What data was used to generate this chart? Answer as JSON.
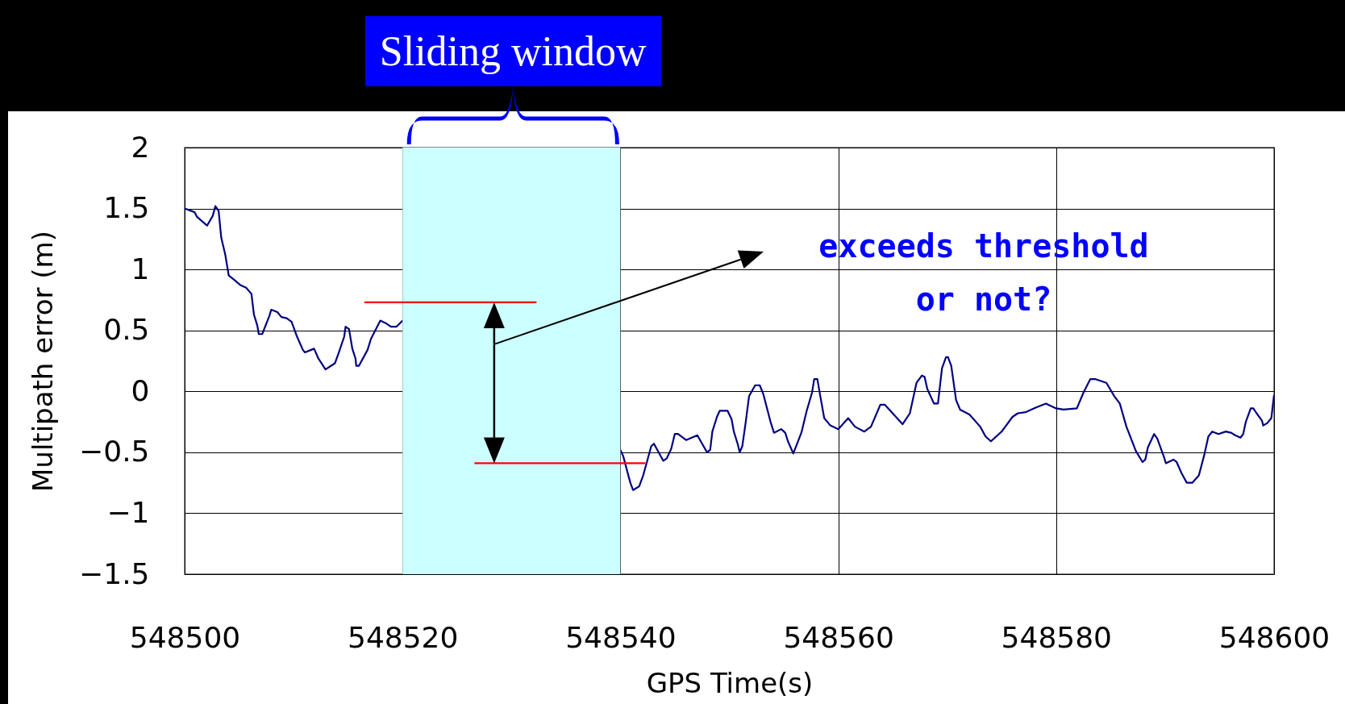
{
  "chart_data": {
    "type": "line",
    "xlabel": "GPS Time(s)",
    "ylabel": "Multipath error (m)",
    "xlim": [
      548500,
      548600
    ],
    "xticks": [
      548500,
      548520,
      548540,
      548560,
      548580,
      548600
    ],
    "ylim": [
      -1.5,
      2
    ],
    "yticks": [
      {
        "value": -1.5,
        "label": "−1.5"
      },
      {
        "value": -1,
        "label": "−1"
      },
      {
        "value": -0.5,
        "label": "−0.5"
      },
      0,
      0.5,
      1,
      1.5,
      2
    ],
    "grid": true,
    "line_style": "solid",
    "marker": "none",
    "series": [
      {
        "type": "line",
        "color": "#000080",
        "x": [
          548500,
          548500.91,
          548501.15,
          548502.06,
          548502.58,
          548502.82,
          548503.12,
          548503.36,
          548503.73,
          548504.05,
          548504.47,
          548505.15,
          548505.64,
          548506.13,
          548506.36,
          548506.67,
          548506.8,
          548507.12,
          548507.78,
          548507.95,
          548508.51,
          548508.88,
          548509.37,
          548509.82,
          548510.31,
          548510.85,
          548511.04,
          548511.88,
          548512.27,
          548512.93,
          548513.79,
          548514.16,
          548514.65,
          548514.77,
          548515.09,
          548515.39,
          548515.68,
          548515.75,
          548516,
          548516.79,
          548517.1,
          548517.96,
          548518.45,
          548518.94,
          548519.43,
          548520,
          548530,
          548540,
          548540.25,
          548540.91,
          548541.16,
          548541.72,
          548542.09,
          548542.46,
          548542.83,
          548543.08,
          548543.32,
          548543.94,
          548544.26,
          548544.67,
          548544.99,
          548545.29,
          548546.03,
          548547.06,
          548547.63,
          548547.95,
          548548.24,
          548548.44,
          548548.86,
          548549.11,
          548549.84,
          548550.21,
          548550.41,
          548550.76,
          548550.95,
          548551.19,
          548551.49,
          548551.81,
          548552.37,
          548552.79,
          548553.11,
          548553.78,
          548554.1,
          548554.76,
          548555.13,
          548555.38,
          548555.87,
          548556.61,
          548557.1,
          548557.59,
          548557.79,
          548558.08,
          548558.33,
          548558.71,
          548559.27,
          548560,
          548560.91,
          548561.53,
          548562.39,
          548563,
          548563.86,
          548564.28,
          548565.09,
          548565.9,
          548566.57,
          548567.18,
          548567.68,
          548567.92,
          548568.17,
          548568.78,
          548569.15,
          548569.52,
          548569.89,
          548570.07,
          548570.37,
          548570.81,
          548571.18,
          548572.04,
          548573.03,
          548573.52,
          548574.01,
          548575,
          548575.99,
          548576.48,
          548577.22,
          548578.2,
          548579.06,
          548580,
          548580.67,
          548581.9,
          548582.51,
          548583.13,
          548583.62,
          548584.61,
          548585.34,
          548585.84,
          548586.45,
          548587.32,
          548587.93,
          548588.18,
          548588.42,
          548588.99,
          548589.29,
          548589.9,
          548590.07,
          548590.76,
          548591.06,
          548591.5,
          548591.99,
          548592.49,
          548593.1,
          548593.6,
          548593.97,
          548594.33,
          548594.9,
          548595.57,
          548596.06,
          548596.43,
          548596.92,
          548597.17,
          548597.41,
          548597.86,
          548598.1,
          548598.4,
          548598.89,
          548599.01,
          548599.38,
          548599.75,
          548600
        ],
        "values": [
          1.5,
          1.47,
          1.43,
          1.36,
          1.44,
          1.52,
          1.48,
          1.26,
          1.12,
          0.95,
          0.92,
          0.87,
          0.85,
          0.8,
          0.63,
          0.54,
          0.47,
          0.47,
          0.62,
          0.67,
          0.65,
          0.61,
          0.6,
          0.57,
          0.45,
          0.34,
          0.32,
          0.35,
          0.27,
          0.18,
          0.23,
          0.32,
          0.45,
          0.53,
          0.51,
          0.35,
          0.27,
          0.21,
          0.21,
          0.34,
          0.43,
          0.58,
          0.56,
          0.53,
          0.53,
          0.58,
          null,
          -0.48,
          -0.53,
          -0.75,
          -0.81,
          -0.78,
          -0.69,
          -0.57,
          -0.45,
          -0.43,
          -0.47,
          -0.57,
          -0.55,
          -0.47,
          -0.35,
          -0.35,
          -0.4,
          -0.36,
          -0.45,
          -0.5,
          -0.48,
          -0.33,
          -0.21,
          -0.16,
          -0.16,
          -0.23,
          -0.33,
          -0.43,
          -0.5,
          -0.45,
          -0.26,
          -0.04,
          0.05,
          0.05,
          -0.02,
          -0.25,
          -0.34,
          -0.31,
          -0.34,
          -0.41,
          -0.51,
          -0.34,
          -0.16,
          -0.01,
          0.1,
          0.1,
          -0.03,
          -0.22,
          -0.28,
          -0.31,
          -0.22,
          -0.29,
          -0.33,
          -0.29,
          -0.11,
          -0.11,
          -0.19,
          -0.27,
          -0.18,
          0.07,
          0.13,
          0.12,
          0.02,
          -0.1,
          -0.1,
          0.19,
          0.28,
          0.28,
          0.21,
          -0.07,
          -0.15,
          -0.19,
          -0.29,
          -0.37,
          -0.41,
          -0.33,
          -0.21,
          -0.18,
          -0.17,
          -0.13,
          -0.1,
          -0.14,
          -0.15,
          -0.14,
          -0.01,
          0.1,
          0.1,
          0.07,
          -0.04,
          -0.1,
          -0.29,
          -0.49,
          -0.58,
          -0.56,
          -0.46,
          -0.35,
          -0.39,
          -0.54,
          -0.59,
          -0.56,
          -0.58,
          -0.67,
          -0.75,
          -0.75,
          -0.69,
          -0.52,
          -0.37,
          -0.33,
          -0.35,
          -0.33,
          -0.34,
          -0.36,
          -0.38,
          -0.35,
          -0.25,
          -0.14,
          -0.14,
          -0.18,
          -0.24,
          -0.28,
          -0.26,
          -0.22,
          -0.03
        ]
      },
      {
        "type": "line",
        "color": "#ff0000",
        "x": [
          548516.5,
          548532.3
        ],
        "values": [
          0.73,
          0.73
        ]
      },
      {
        "type": "line",
        "color": "#ff0000",
        "x": [
          548526.6,
          548542.3
        ],
        "values": [
          -0.59,
          -0.59
        ]
      }
    ],
    "bands": [
      {
        "axis": "x",
        "from": 548520,
        "to": 548540,
        "label": "Sliding window",
        "color": "#ccffff"
      }
    ],
    "annotations": [
      "exceeds threshold or not?"
    ]
  }
}
